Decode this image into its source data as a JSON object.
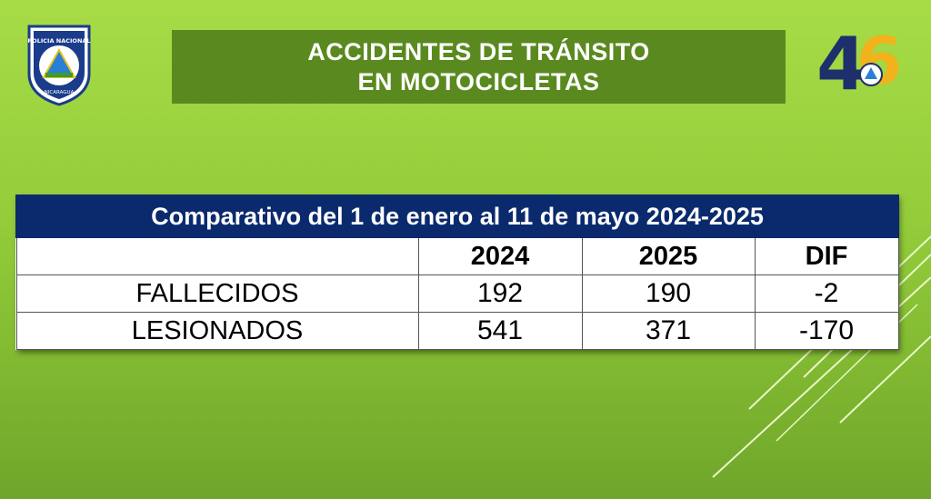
{
  "header": {
    "title_line1": "ACCIDENTES DE TRÁNSITO",
    "title_line2": "EN MOTOCICLETAS",
    "logo_left_text_top": "POLICIA NACIONAL",
    "logo_left_text_bottom": "NICARAGUA",
    "logo_right_number": "46"
  },
  "table": {
    "caption": "Comparativo del 1 de enero al 11 de mayo 2024-2025",
    "columns": [
      "",
      "2024",
      "2025",
      "DIF"
    ],
    "rows": [
      {
        "label": "FALLECIDOS",
        "y2024": "192",
        "y2025": "190",
        "dif": "-2"
      },
      {
        "label": "LESIONADOS",
        "y2024": "541",
        "y2025": "371",
        "dif": "-170"
      }
    ]
  },
  "colors": {
    "background": "#9ed63f",
    "title_box": "#5a8a1f",
    "table_header": "#0b2a6e"
  }
}
